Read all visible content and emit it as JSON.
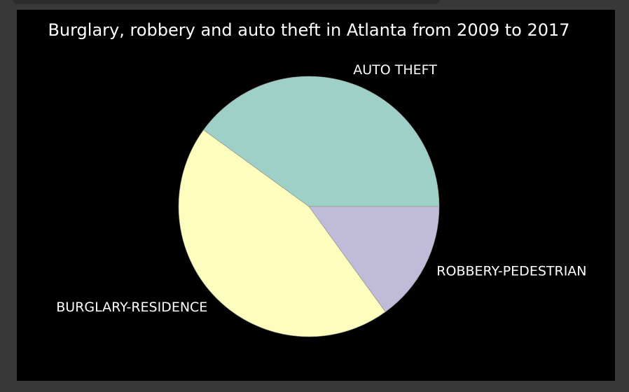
{
  "chart_data": {
    "type": "pie",
    "title": "Burglary, robbery and auto theft in Atlanta from 2009 to 2017",
    "categories": [
      "AUTO THEFT",
      "BURGLARY-RESIDENCE",
      "ROBBERY-PEDESTRIAN"
    ],
    "values": [
      40,
      45,
      15
    ],
    "colors": [
      "#9ed0c8",
      "#fdfdbd",
      "#bfbbd9"
    ],
    "start_angle_deg": 0,
    "direction": "counterclockwise",
    "legend": "none"
  }
}
